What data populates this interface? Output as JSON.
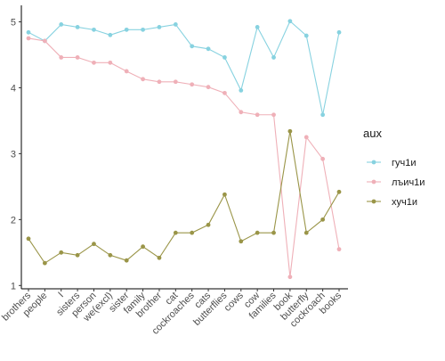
{
  "chart_data": {
    "type": "line",
    "categories": [
      "brothers",
      "people",
      "I",
      "sisters",
      "person",
      "we(excl)",
      "sister",
      "family",
      "brother",
      "cat",
      "cockroaches",
      "cats",
      "butterflies",
      "cows",
      "cow",
      "families",
      "book",
      "butterfly",
      "cockroach",
      "books"
    ],
    "ylim": [
      0.95,
      5.25
    ],
    "yticks": [
      1,
      2,
      3,
      4,
      5
    ],
    "grid": false,
    "legend": {
      "title": "aux",
      "placement": "right"
    },
    "series": [
      {
        "name": "гуч1и",
        "color": "#87d2e0",
        "values": [
          4.84,
          4.71,
          4.96,
          4.92,
          4.88,
          4.8,
          4.88,
          4.88,
          4.92,
          4.96,
          4.63,
          4.59,
          4.46,
          3.96,
          4.92,
          4.46,
          5.01,
          4.79,
          3.59,
          4.84
        ]
      },
      {
        "name": "лъич1и",
        "color": "#efb0b8",
        "values": [
          4.75,
          4.71,
          4.46,
          4.46,
          4.38,
          4.38,
          4.25,
          4.13,
          4.09,
          4.09,
          4.05,
          4.01,
          3.92,
          3.63,
          3.59,
          3.59,
          1.13,
          3.25,
          2.92,
          1.55
        ]
      },
      {
        "name": "хуч1и",
        "color": "#9a9548",
        "values": [
          1.71,
          1.34,
          1.5,
          1.46,
          1.63,
          1.46,
          1.38,
          1.59,
          1.42,
          1.8,
          1.8,
          1.92,
          2.38,
          1.67,
          1.8,
          1.8,
          3.34,
          1.8,
          2.0,
          2.42
        ]
      }
    ]
  }
}
